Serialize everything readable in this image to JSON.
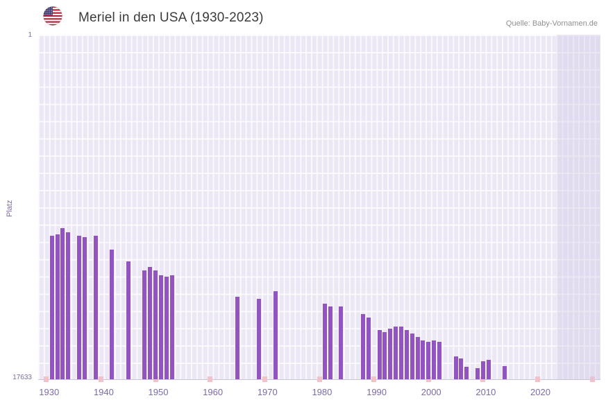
{
  "header": {
    "title": "Meriel in den USA (1930-2023)",
    "source": "Quelle: Baby-Vornamen.de",
    "flag_icon": "us-flag-icon"
  },
  "chart_data": {
    "type": "bar",
    "title": "Meriel in den USA (1930-2023)",
    "ylabel": "Platz",
    "grid": true,
    "legend": "none",
    "bar_color": "#9353c1",
    "y_axis": {
      "top_tick_label": "1",
      "bottom_tick_label": "17633",
      "min": 1,
      "max": 17633,
      "inverted": true
    },
    "x_axis": {
      "tick_labels": [
        "1930",
        "1940",
        "1950",
        "1960",
        "1970",
        "1980",
        "1990",
        "2000",
        "2010",
        "2020"
      ],
      "range": [
        1928,
        2031
      ]
    },
    "future_band": {
      "start_year": 2023,
      "color": "#cfc7e6"
    },
    "no_data_marker_years": [
      1929,
      1939,
      1949,
      1959,
      1969,
      1979,
      1989,
      1999,
      2009,
      2019,
      2029
    ],
    "no_data_marker_color": "#f2c2ca",
    "points": [
      {
        "year": 1930,
        "rank": 10300
      },
      {
        "year": 1931,
        "rank": 10200
      },
      {
        "year": 1932,
        "rank": 9900
      },
      {
        "year": 1933,
        "rank": 10100
      },
      {
        "year": 1935,
        "rank": 10300
      },
      {
        "year": 1936,
        "rank": 10350
      },
      {
        "year": 1938,
        "rank": 10300
      },
      {
        "year": 1941,
        "rank": 11000
      },
      {
        "year": 1944,
        "rank": 11600
      },
      {
        "year": 1947,
        "rank": 12050
      },
      {
        "year": 1948,
        "rank": 11900
      },
      {
        "year": 1949,
        "rank": 12050
      },
      {
        "year": 1950,
        "rank": 12300
      },
      {
        "year": 1951,
        "rank": 12380
      },
      {
        "year": 1952,
        "rank": 12300
      },
      {
        "year": 1964,
        "rank": 13420
      },
      {
        "year": 1968,
        "rank": 13530
      },
      {
        "year": 1971,
        "rank": 13140
      },
      {
        "year": 1980,
        "rank": 13780
      },
      {
        "year": 1981,
        "rank": 13920
      },
      {
        "year": 1983,
        "rank": 13920
      },
      {
        "year": 1987,
        "rank": 14310
      },
      {
        "year": 1988,
        "rank": 14490
      },
      {
        "year": 1990,
        "rank": 15120
      },
      {
        "year": 1991,
        "rank": 15230
      },
      {
        "year": 1992,
        "rank": 15050
      },
      {
        "year": 1993,
        "rank": 14950
      },
      {
        "year": 1994,
        "rank": 14950
      },
      {
        "year": 1995,
        "rank": 15120
      },
      {
        "year": 1996,
        "rank": 15300
      },
      {
        "year": 1997,
        "rank": 15480
      },
      {
        "year": 1998,
        "rank": 15660
      },
      {
        "year": 1999,
        "rank": 15730
      },
      {
        "year": 2000,
        "rank": 15660
      },
      {
        "year": 2001,
        "rank": 15730
      },
      {
        "year": 2004,
        "rank": 16470
      },
      {
        "year": 2005,
        "rank": 16570
      },
      {
        "year": 2006,
        "rank": 17000
      },
      {
        "year": 2008,
        "rank": 17060
      },
      {
        "year": 2009,
        "rank": 16710
      },
      {
        "year": 2010,
        "rank": 16640
      },
      {
        "year": 2013,
        "rank": 16950
      }
    ]
  }
}
